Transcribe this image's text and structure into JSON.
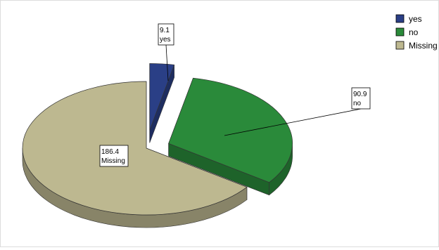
{
  "chart_data": {
    "type": "pie",
    "style": "3d-exploded",
    "title": "",
    "categories": [
      "yes",
      "no",
      "Missing"
    ],
    "values": [
      9.1,
      90.9,
      186.4
    ],
    "labels": [
      {
        "value": "9.1",
        "name": "yes"
      },
      {
        "value": "90.9",
        "name": "no"
      },
      {
        "value": "186.4",
        "name": "Missing"
      }
    ],
    "colors": [
      "#2a3f86",
      "#2a8a3a",
      "#bdb890"
    ],
    "legend": {
      "position": "top-right",
      "items": [
        {
          "label": "yes",
          "color": "#2a3f86"
        },
        {
          "label": "no",
          "color": "#2a8a3a"
        },
        {
          "label": "Missing",
          "color": "#bdb890"
        }
      ]
    }
  }
}
